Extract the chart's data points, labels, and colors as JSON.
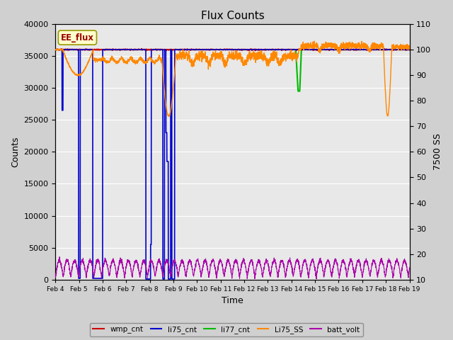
{
  "title": "Flux Counts",
  "xlabel": "Time",
  "ylabel_left": "Counts",
  "ylabel_right": "7500 SS",
  "annotation": "EE_flux",
  "ylim_left": [
    0,
    40000
  ],
  "ylim_right": [
    10,
    110
  ],
  "fig_bg_color": "#d0d0d0",
  "plot_bg_color": "#e8e8e8",
  "series_colors": {
    "wmp_cnt": "#cc0000",
    "li75_cnt": "#0000cc",
    "li77_cnt": "#00bb00",
    "Li75_SS": "#ff8800",
    "batt_volt": "#aa00aa"
  },
  "x_tick_labels": [
    "Feb 4",
    "Feb 5",
    "Feb 6",
    "Feb 7",
    "Feb 8",
    "Feb 9",
    "Feb 10",
    "Feb 11",
    "Feb 12",
    "Feb 13",
    "Feb 14",
    "Feb 15",
    "Feb 16",
    "Feb 17",
    "Feb 18",
    "Feb 19"
  ],
  "yticks_left": [
    0,
    5000,
    10000,
    15000,
    20000,
    25000,
    30000,
    35000,
    40000
  ],
  "yticks_right": [
    10,
    20,
    30,
    40,
    50,
    60,
    70,
    80,
    90,
    100,
    110
  ]
}
